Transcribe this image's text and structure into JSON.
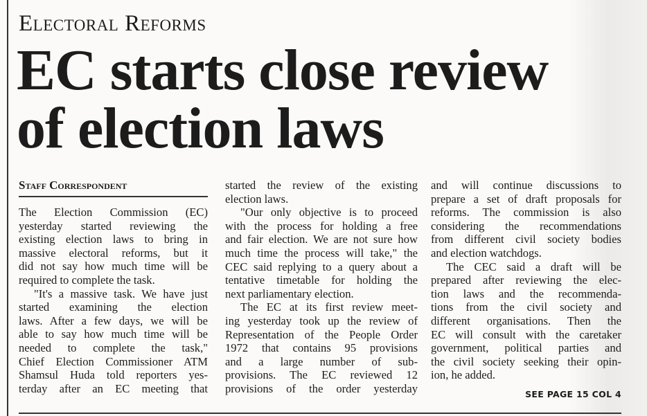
{
  "kicker": "Electoral Reforms",
  "headline": [
    "EC starts close review",
    "of election laws"
  ],
  "byline": "Staff Correspondent",
  "columns": [
    [
      [
        "The Election Commission (EC)",
        "yesterday started reviewing the",
        "existing election laws to bring in",
        "massive electoral reforms, but it",
        "did not say how much time will be",
        "required to complete the task."
      ],
      [
        "\"It's a massive task. We have just",
        "started examining the election",
        "laws. After a few days, we will be",
        "able to say how much time will be",
        "needed to complete the task,\"",
        "Chief Election Commissioner ATM",
        "Shamsul Huda told reporters yes-",
        "terday after an EC meeting that"
      ]
    ],
    [
      [
        "started the review of the existing",
        "election laws."
      ],
      [
        "\"Our only objective is to proceed",
        "with the process for holding a free",
        "and fair election. We are not sure how",
        "much time the process will take,\" the",
        "CEC said replying to a query about a",
        "tentative timetable for holding the",
        "next parliamentary election."
      ],
      [
        "The EC at its first review meet-",
        "ing yesterday took up the review of",
        "Representation of the People Order",
        "1972 that contains 95 provisions",
        "and a large number of sub-",
        "provisions. The EC reviewed 12",
        "provisions of the order yesterday"
      ]
    ],
    [
      [
        "and will continue discussions to",
        "prepare a set of draft proposals for",
        "reforms. The commission is also",
        "considering the recommendations",
        "from different civil society bodies",
        "and election watchdogs."
      ],
      [
        "The CEC said a draft will be",
        "prepared after reviewing the elec-",
        "tion laws and the recommenda-",
        "tions from the civil society and",
        "different organisations. Then the",
        "EC will consult with the caretaker",
        "government, political parties and",
        "the civil society seeking their opin-",
        "ion, he added."
      ]
    ]
  ],
  "continued": "SEE PAGE 15 COL 4",
  "continues_last_paragraph": [
    false,
    true,
    false
  ]
}
